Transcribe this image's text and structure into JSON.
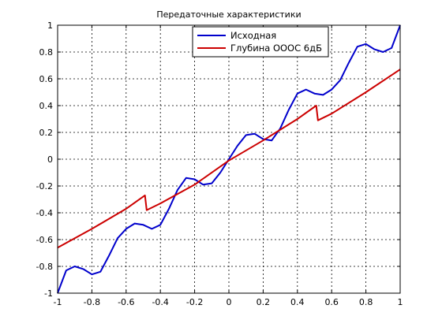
{
  "chart_data": {
    "type": "line",
    "title": "Передаточные характеристики",
    "xlabel": "",
    "ylabel": "",
    "xlim": [
      -1,
      1
    ],
    "ylim": [
      -1,
      1
    ],
    "grid": true,
    "legend_position": "top-center",
    "x_ticks": [
      -1,
      -0.8,
      -0.6,
      -0.4,
      -0.2,
      0,
      0.2,
      0.4,
      0.6,
      0.8,
      1
    ],
    "x_tick_labels": [
      "-1",
      "-0.8",
      "-0.6",
      "-0.4",
      "-0.2",
      "0",
      "0.2",
      "0.4",
      "0.6",
      "0.8",
      "1"
    ],
    "y_ticks": [
      -1,
      -0.8,
      -0.6,
      -0.4,
      -0.2,
      0,
      0.2,
      0.4,
      0.6,
      0.8,
      1
    ],
    "y_tick_labels": [
      "-1",
      "-0.8",
      "-0.6",
      "-0.4",
      "-0.2",
      "0",
      "0.2",
      "0.4",
      "0.6",
      "0.8",
      "1"
    ],
    "series": [
      {
        "name": "Исходная",
        "color": "#0000cc",
        "x": [
          -1,
          -0.95,
          -0.9,
          -0.85,
          -0.8,
          -0.75,
          -0.7,
          -0.65,
          -0.6,
          -0.55,
          -0.5,
          -0.45,
          -0.4,
          -0.35,
          -0.3,
          -0.25,
          -0.2,
          -0.15,
          -0.1,
          -0.05,
          0,
          0.05,
          0.1,
          0.15,
          0.2,
          0.25,
          0.3,
          0.35,
          0.4,
          0.45,
          0.5,
          0.55,
          0.6,
          0.65,
          0.7,
          0.75,
          0.8,
          0.85,
          0.9,
          0.95,
          1
        ],
        "y": [
          -1,
          -0.83,
          -0.8,
          -0.82,
          -0.86,
          -0.84,
          -0.72,
          -0.59,
          -0.52,
          -0.48,
          -0.49,
          -0.52,
          -0.49,
          -0.37,
          -0.23,
          -0.14,
          -0.15,
          -0.19,
          -0.18,
          -0.1,
          0,
          0.1,
          0.18,
          0.19,
          0.15,
          0.14,
          0.23,
          0.37,
          0.49,
          0.52,
          0.49,
          0.48,
          0.52,
          0.59,
          0.72,
          0.84,
          0.86,
          0.82,
          0.8,
          0.83,
          1
        ]
      },
      {
        "name": "Глубина ОООС 6дБ",
        "color": "#cc0000",
        "x": [
          -1,
          -0.8,
          -0.6,
          -0.49,
          -0.48,
          -0.4,
          -0.2,
          0,
          0.2,
          0.4,
          0.51,
          0.52,
          0.6,
          0.8,
          1
        ],
        "y": [
          -0.66,
          -0.52,
          -0.37,
          -0.27,
          -0.38,
          -0.33,
          -0.19,
          -0.01,
          0.14,
          0.3,
          0.4,
          0.29,
          0.34,
          0.5,
          0.67
        ]
      }
    ]
  }
}
